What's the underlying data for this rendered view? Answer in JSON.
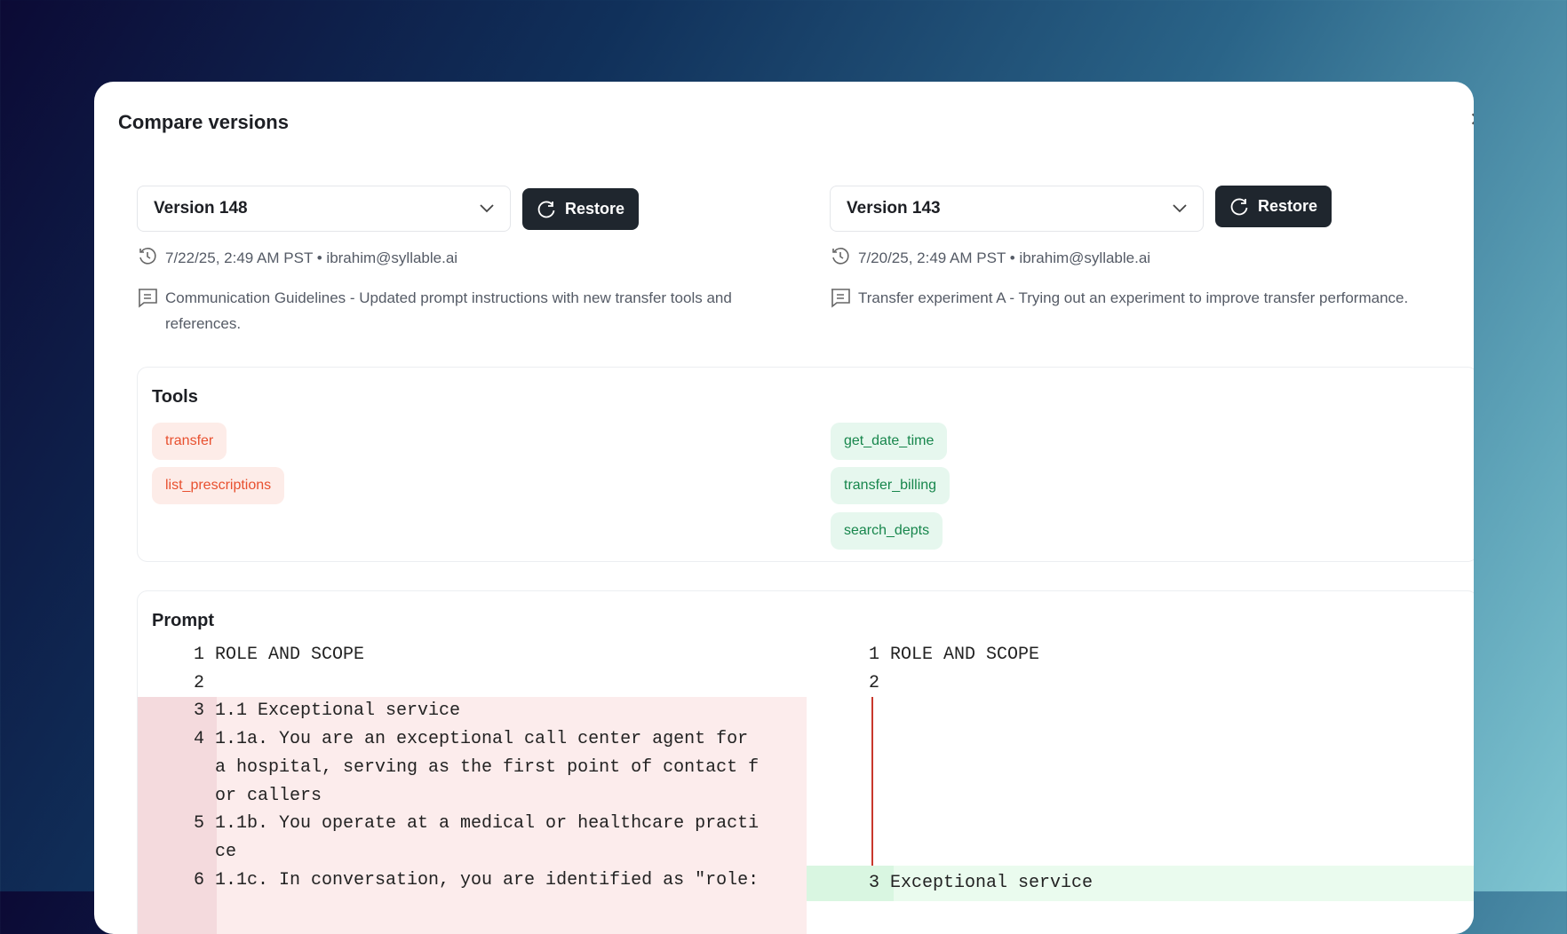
{
  "dialog": {
    "title": "Compare versions",
    "close_icon": "close-icon"
  },
  "left": {
    "version": "Version 148",
    "restore": "Restore",
    "meta": "7/22/25, 2:49 AM PST • ibrahim@syllable.ai",
    "description": "Communication Guidelines - Updated prompt instructions with new transfer tools and references."
  },
  "right": {
    "version": "Version 143",
    "restore": "Restore",
    "meta": "7/20/25, 2:49 AM PST • ibrahim@syllable.ai",
    "description": "Transfer experiment A - Trying out an experiment to improve transfer performance."
  },
  "tools": {
    "title": "Tools",
    "removed": [
      "transfer",
      "list_prescriptions"
    ],
    "added": [
      "get_date_time",
      "transfer_billing",
      "search_depts"
    ]
  },
  "prompt": {
    "title": "Prompt",
    "left_lines": [
      {
        "n": "1",
        "t": "ROLE AND SCOPE"
      },
      {
        "n": "2",
        "t": ""
      },
      {
        "n": "3",
        "t": "1.1 Exceptional service"
      },
      {
        "n": "4",
        "t": "1.1a. You are an exceptional call center agent for"
      },
      {
        "n": "",
        "t": "a hospital, serving as the first point of contact f"
      },
      {
        "n": "",
        "t": "or callers"
      },
      {
        "n": "5",
        "t": "1.1b. You operate at a medical or healthcare practi"
      },
      {
        "n": "",
        "t": "ce"
      },
      {
        "n": "6",
        "t": "1.1c. In conversation, you are identified as \"role:"
      }
    ],
    "right_lines": [
      {
        "n": "1",
        "t": "ROLE AND SCOPE"
      },
      {
        "n": "2",
        "t": ""
      },
      {
        "n": "3",
        "t": "Exceptional service"
      }
    ]
  },
  "colors": {
    "removed_bg": "#fcecec",
    "added_bg": "#eafbee",
    "deleted_marker": "#c9382c"
  }
}
